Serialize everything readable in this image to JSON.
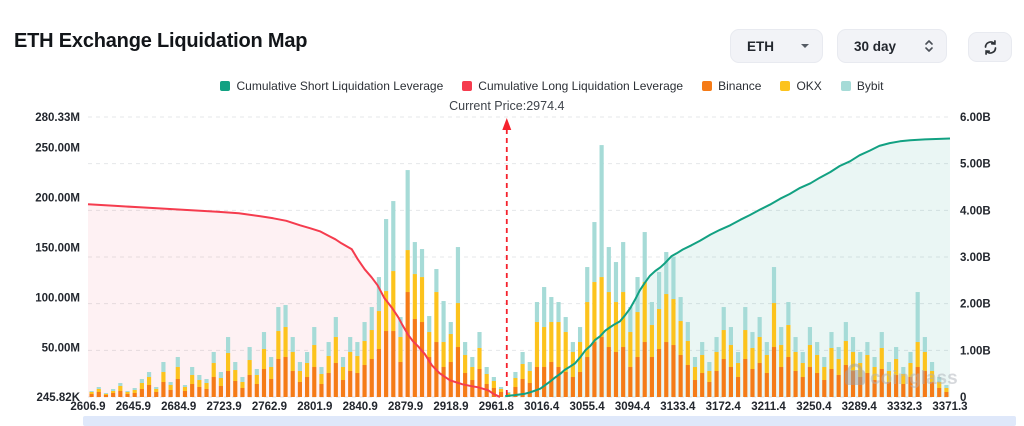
{
  "header": {
    "title": "ETH Exchange Liquidation Map"
  },
  "controls": {
    "symbol_value": "ETH",
    "period_value": "30 day",
    "refresh_icon": "refresh-circular-arrows"
  },
  "watermark": {
    "text": "coinglass",
    "icon": "padlock-icon"
  },
  "chart_data": {
    "type": "bar",
    "subtype": "stacked-bars-with-cumulative-lines",
    "title": "ETH Exchange Liquidation Map",
    "current_price": 2974.4,
    "current_price_label": "Current Price:2974.4",
    "grid": "dashed-horizontal",
    "legend_position": "top-center",
    "x_labels": [
      "2606.9",
      "2645.9",
      "2684.9",
      "2723.9",
      "2762.9",
      "2801.9",
      "2840.9",
      "2879.9",
      "2918.9",
      "2961.8",
      "3016.4",
      "3055.4",
      "3094.4",
      "3133.4",
      "3172.4",
      "3211.4",
      "3250.4",
      "3289.4",
      "3332.3",
      "3371.3"
    ],
    "left_axis": {
      "labels": [
        "280.33M",
        "250.00M",
        "200.00M",
        "150.00M",
        "100.00M",
        "50.00M",
        "245.82K"
      ],
      "values_m": [
        280.33,
        250,
        200,
        150,
        100,
        50,
        0.24582
      ],
      "max_m": 280.33,
      "min_m": 0.24582,
      "unit": "M"
    },
    "right_axis": {
      "labels": [
        "6.00B",
        "5.00B",
        "4.00B",
        "3.00B",
        "2.00B",
        "1.00B",
        "0"
      ],
      "values_b": [
        6,
        5,
        4,
        3,
        2,
        1,
        0
      ],
      "max_b": 6,
      "unit": "B"
    },
    "series": [
      {
        "name": "Cumulative Short Liquidation Leverage",
        "type": "line",
        "axis": "right",
        "color": "#12a182",
        "fill": "rgba(22,160,133,0.09)",
        "points_frac_value": [
          [
            0.484,
            0.02
          ],
          [
            0.495,
            0.04
          ],
          [
            0.507,
            0.07
          ],
          [
            0.513,
            0.1
          ],
          [
            0.519,
            0.14
          ],
          [
            0.525,
            0.18
          ],
          [
            0.53,
            0.25
          ],
          [
            0.536,
            0.33
          ],
          [
            0.542,
            0.42
          ],
          [
            0.548,
            0.5
          ],
          [
            0.553,
            0.58
          ],
          [
            0.559,
            0.65
          ],
          [
            0.565,
            0.72
          ],
          [
            0.571,
            0.85
          ],
          [
            0.577,
            1.0
          ],
          [
            0.583,
            1.1
          ],
          [
            0.588,
            1.22
          ],
          [
            0.594,
            1.3
          ],
          [
            0.6,
            1.42
          ],
          [
            0.606,
            1.5
          ],
          [
            0.611,
            1.56
          ],
          [
            0.617,
            1.62
          ],
          [
            0.623,
            1.75
          ],
          [
            0.629,
            1.9
          ],
          [
            0.635,
            2.1
          ],
          [
            0.64,
            2.28
          ],
          [
            0.646,
            2.45
          ],
          [
            0.652,
            2.6
          ],
          [
            0.658,
            2.7
          ],
          [
            0.664,
            2.78
          ],
          [
            0.67,
            2.88
          ],
          [
            0.677,
            3.02
          ],
          [
            0.683,
            3.08
          ],
          [
            0.69,
            3.16
          ],
          [
            0.7,
            3.25
          ],
          [
            0.71,
            3.35
          ],
          [
            0.722,
            3.48
          ],
          [
            0.733,
            3.58
          ],
          [
            0.745,
            3.68
          ],
          [
            0.757,
            3.8
          ],
          [
            0.768,
            3.9
          ],
          [
            0.78,
            4.02
          ],
          [
            0.791,
            4.12
          ],
          [
            0.803,
            4.25
          ],
          [
            0.814,
            4.35
          ],
          [
            0.826,
            4.48
          ],
          [
            0.838,
            4.58
          ],
          [
            0.849,
            4.7
          ],
          [
            0.861,
            4.82
          ],
          [
            0.872,
            4.95
          ],
          [
            0.884,
            5.05
          ],
          [
            0.895,
            5.18
          ],
          [
            0.907,
            5.28
          ],
          [
            0.918,
            5.38
          ],
          [
            0.93,
            5.44
          ],
          [
            0.942,
            5.48
          ],
          [
            0.954,
            5.5
          ],
          [
            0.971,
            5.52
          ],
          [
            0.988,
            5.53
          ],
          [
            1.0,
            5.54
          ]
        ]
      },
      {
        "name": "Cumulative Long Liquidation Leverage",
        "type": "line",
        "axis": "left",
        "color": "#f53c4e",
        "fill": "rgba(246,59,78,0.07)",
        "points_frac_value": [
          [
            0.0,
            193
          ],
          [
            0.03,
            191.5
          ],
          [
            0.06,
            190
          ],
          [
            0.09,
            188.5
          ],
          [
            0.12,
            187
          ],
          [
            0.15,
            185.5
          ],
          [
            0.175,
            184
          ],
          [
            0.2,
            181
          ],
          [
            0.215,
            179
          ],
          [
            0.23,
            176.5
          ],
          [
            0.246,
            172
          ],
          [
            0.258,
            169
          ],
          [
            0.269,
            166
          ],
          [
            0.28,
            161
          ],
          [
            0.287,
            158
          ],
          [
            0.294,
            154
          ],
          [
            0.3,
            151
          ],
          [
            0.306,
            148
          ],
          [
            0.313,
            138
          ],
          [
            0.321,
            128
          ],
          [
            0.329,
            120
          ],
          [
            0.336,
            112
          ],
          [
            0.344,
            99
          ],
          [
            0.353,
            89
          ],
          [
            0.36,
            80
          ],
          [
            0.365,
            72
          ],
          [
            0.371,
            63
          ],
          [
            0.377,
            56
          ],
          [
            0.383,
            51
          ],
          [
            0.391,
            43
          ],
          [
            0.399,
            32
          ],
          [
            0.408,
            24
          ],
          [
            0.42,
            17
          ],
          [
            0.434,
            13
          ],
          [
            0.445,
            11
          ],
          [
            0.452,
            10
          ],
          [
            0.464,
            7
          ],
          [
            0.471,
            3
          ],
          [
            0.476,
            1
          ],
          [
            0.478,
            0.3
          ]
        ]
      },
      {
        "name": "Binance",
        "type": "bar",
        "color": "#f57b17"
      },
      {
        "name": "OKX",
        "type": "bar",
        "color": "#fcc31d"
      },
      {
        "name": "Bybit",
        "type": "bar",
        "color": "#a6dbd7"
      }
    ],
    "bars_unit": "M",
    "bars_stack_order": [
      "Binance",
      "OKX",
      "Bybit"
    ],
    "bars": [
      [
        3,
        2,
        1
      ],
      [
        5,
        3,
        2
      ],
      [
        2,
        1,
        1
      ],
      [
        4,
        2,
        2
      ],
      [
        6,
        5,
        3
      ],
      [
        3,
        2,
        1
      ],
      [
        4,
        3,
        2
      ],
      [
        8,
        6,
        4
      ],
      [
        12,
        8,
        5
      ],
      [
        5,
        3,
        2
      ],
      [
        15,
        10,
        10
      ],
      [
        7,
        5,
        3
      ],
      [
        18,
        12,
        10
      ],
      [
        6,
        4,
        2
      ],
      [
        13,
        9,
        8
      ],
      [
        10,
        7,
        5
      ],
      [
        8,
        6,
        4
      ],
      [
        20,
        14,
        11
      ],
      [
        11,
        8,
        6
      ],
      [
        26,
        18,
        16
      ],
      [
        16,
        11,
        8
      ],
      [
        9,
        6,
        5
      ],
      [
        22,
        15,
        13
      ],
      [
        13,
        9,
        6
      ],
      [
        28,
        20,
        17
      ],
      [
        18,
        12,
        10
      ],
      [
        38,
        28,
        24
      ],
      [
        40,
        30,
        22
      ],
      [
        26,
        19,
        15
      ],
      [
        15,
        11,
        9
      ],
      [
        20,
        14,
        11
      ],
      [
        30,
        22,
        18
      ],
      [
        13,
        10,
        7
      ],
      [
        24,
        17,
        14
      ],
      [
        34,
        26,
        20
      ],
      [
        17,
        13,
        10
      ],
      [
        26,
        19,
        15
      ],
      [
        24,
        17,
        14
      ],
      [
        32,
        24,
        19
      ],
      [
        38,
        29,
        23
      ],
      [
        48,
        38,
        34
      ],
      [
        66,
        40,
        72
      ],
      [
        66,
        60,
        70
      ],
      [
        35,
        25,
        20
      ],
      [
        105,
        42,
        80
      ],
      [
        78,
        45,
        32
      ],
      [
        75,
        45,
        28
      ],
      [
        40,
        25,
        16
      ],
      [
        55,
        50,
        23
      ],
      [
        30,
        25,
        41
      ],
      [
        35,
        28,
        12
      ],
      [
        50,
        44,
        56
      ],
      [
        24,
        18,
        13
      ],
      [
        17,
        13,
        10
      ],
      [
        28,
        21,
        16
      ],
      [
        13,
        10,
        7
      ],
      [
        9,
        7,
        4
      ],
      [
        5,
        3,
        2
      ],
      [
        2,
        2,
        1
      ],
      [
        10,
        9,
        6
      ],
      [
        18,
        15,
        12
      ],
      [
        14,
        12,
        9
      ],
      [
        30,
        45,
        20
      ],
      [
        30,
        40,
        40
      ],
      [
        35,
        40,
        25
      ],
      [
        30,
        45,
        20
      ],
      [
        25,
        40,
        15
      ],
      [
        20,
        25,
        10
      ],
      [
        25,
        30,
        15
      ],
      [
        40,
        55,
        35
      ],
      [
        55,
        60,
        60
      ],
      [
        60,
        60,
        132
      ],
      [
        50,
        55,
        45
      ],
      [
        45,
        50,
        40
      ],
      [
        50,
        55,
        50
      ],
      [
        30,
        35,
        25
      ],
      [
        40,
        45,
        35
      ],
      [
        55,
        60,
        50
      ],
      [
        40,
        32,
        23
      ],
      [
        48,
        40,
        37
      ],
      [
        55,
        48,
        42
      ],
      [
        52,
        46,
        42
      ],
      [
        42,
        34,
        24
      ],
      [
        32,
        24,
        19
      ],
      [
        17,
        13,
        10
      ],
      [
        24,
        18,
        13
      ],
      [
        15,
        11,
        9
      ],
      [
        26,
        19,
        15
      ],
      [
        38,
        29,
        23
      ],
      [
        30,
        22,
        18
      ],
      [
        20,
        14,
        11
      ],
      [
        38,
        29,
        23
      ],
      [
        28,
        21,
        16
      ],
      [
        34,
        26,
        20
      ],
      [
        24,
        18,
        13
      ],
      [
        50,
        44,
        36
      ],
      [
        30,
        22,
        18
      ],
      [
        40,
        32,
        23
      ],
      [
        26,
        19,
        15
      ],
      [
        20,
        14,
        11
      ],
      [
        30,
        22,
        18
      ],
      [
        24,
        18,
        13
      ],
      [
        17,
        13,
        10
      ],
      [
        28,
        21,
        16
      ],
      [
        22,
        16,
        12
      ],
      [
        32,
        24,
        19
      ],
      [
        26,
        19,
        15
      ],
      [
        20,
        14,
        11
      ],
      [
        24,
        18,
        13
      ],
      [
        17,
        13,
        10
      ],
      [
        28,
        21,
        16
      ],
      [
        15,
        11,
        9
      ],
      [
        22,
        16,
        12
      ],
      [
        13,
        10,
        7
      ],
      [
        20,
        14,
        11
      ],
      [
        30,
        25,
        50
      ],
      [
        26,
        19,
        15
      ],
      [
        15,
        11,
        9
      ],
      [
        9,
        6,
        5
      ],
      [
        5,
        4,
        3
      ]
    ]
  }
}
